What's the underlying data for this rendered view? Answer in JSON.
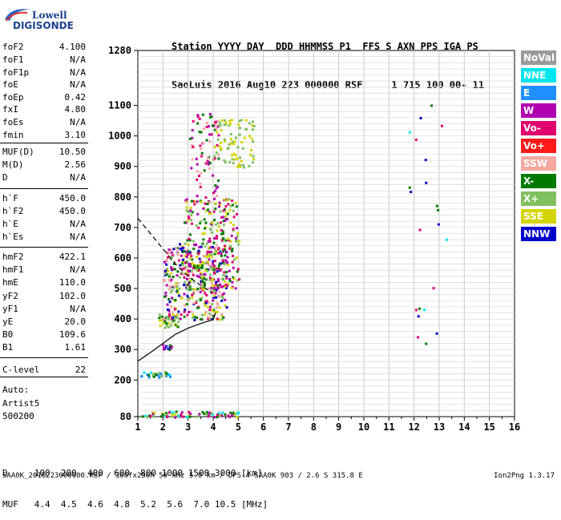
{
  "logo": {
    "line1": "Lowell",
    "line2": "DIGISONDE"
  },
  "header": {
    "line1": "Station YYYY DAY  DDD HHMMSS P1  FFS S AXN PPS IGA PS",
    "line2": "SaoLuis 2016 Aug10 223 000000 RSF     1 715 100 00- 11"
  },
  "params": [
    {
      "k": "foF2",
      "v": "4.100"
    },
    {
      "k": "foF1",
      "v": "N/A"
    },
    {
      "k": "foF1p",
      "v": "N/A"
    },
    {
      "k": "foE",
      "v": "N/A"
    },
    {
      "k": "foEp",
      "v": "0.42"
    },
    {
      "k": "fxI",
      "v": "4.80"
    },
    {
      "k": "foEs",
      "v": "N/A"
    },
    {
      "k": "fmin",
      "v": "3.10"
    },
    {
      "k": "MUF(D)",
      "v": "10.50"
    },
    {
      "k": "M(D)",
      "v": "2.56"
    },
    {
      "k": "D",
      "v": "N/A"
    },
    {
      "k": "h`F",
      "v": "450.0"
    },
    {
      "k": "h`F2",
      "v": "450.0"
    },
    {
      "k": "h`E",
      "v": "N/A"
    },
    {
      "k": "h`Es",
      "v": "N/A"
    },
    {
      "k": "hmF2",
      "v": "422.1"
    },
    {
      "k": "hmF1",
      "v": "N/A"
    },
    {
      "k": "hmE",
      "v": "110.0"
    },
    {
      "k": "yF2",
      "v": "102.0"
    },
    {
      "k": "yF1",
      "v": "N/A"
    },
    {
      "k": "yE",
      "v": "20.0"
    },
    {
      "k": "B0",
      "v": "109.6"
    },
    {
      "k": "B1",
      "v": "1.61"
    },
    {
      "k": "C-level",
      "v": "22"
    }
  ],
  "auto": {
    "line1": "Auto:",
    "line2": "Artist5",
    "line3": "500200"
  },
  "legend": [
    {
      "label": "NoVal",
      "color": "#9a9a9a"
    },
    {
      "label": "NNE",
      "color": "#00e5ee"
    },
    {
      "label": "E",
      "color": "#1e90ff"
    },
    {
      "label": "W",
      "color": "#b000b0"
    },
    {
      "label": "Vo-",
      "color": "#e0006e"
    },
    {
      "label": "Vo+",
      "color": "#ff1a1a"
    },
    {
      "label": "SSW",
      "color": "#f4a8a0"
    },
    {
      "label": "X-",
      "color": "#007a00"
    },
    {
      "label": "X+",
      "color": "#80c060"
    },
    {
      "label": "SSE",
      "color": "#d4d400"
    },
    {
      "label": "NNW",
      "color": "#0000cc"
    }
  ],
  "bottom": {
    "line1": "D     100  200  400  600  800 1000 1500 3000 [km]",
    "line2": "MUF   4.4  4.5  4.6  4.8  5.2  5.6  7.0 10.5 [MHz]"
  },
  "footer": {
    "left": "SAA0K_2016223000000.RSF / 300fx256h 50 kHz 5.0 km / DPS-4 SAA0K 903 / 2.6 S 315.8 E",
    "right": "Ion2Png 1.3.17"
  },
  "chart_data": {
    "type": "scatter",
    "title": "",
    "xlabel": "",
    "ylabel": "",
    "xlim": [
      1,
      16
    ],
    "ylim": [
      80,
      1280
    ],
    "x_ticks": [
      1,
      2,
      3,
      4,
      5,
      6,
      7,
      8,
      9,
      10,
      11,
      12,
      13,
      14,
      15,
      16
    ],
    "y_ticks": [
      80,
      200,
      300,
      400,
      500,
      600,
      700,
      800,
      900,
      1000,
      1100,
      1280
    ],
    "grid": true,
    "legend_position": "right",
    "traces": [
      {
        "kind": "dashed",
        "points": [
          [
            1.0,
            730
          ],
          [
            1.5,
            680
          ],
          [
            2.0,
            630
          ],
          [
            2.5,
            580
          ],
          [
            3.0,
            540
          ],
          [
            3.5,
            510
          ],
          [
            3.9,
            490
          ]
        ]
      },
      {
        "kind": "solid",
        "points": [
          [
            1.0,
            262
          ],
          [
            1.5,
            290
          ],
          [
            2.0,
            320
          ],
          [
            2.5,
            350
          ],
          [
            3.0,
            370
          ],
          [
            3.5,
            385
          ],
          [
            4.0,
            398
          ],
          [
            4.1,
            420
          ]
        ]
      }
    ],
    "echo_clusters": [
      {
        "x": [
          1.9,
          2.3
        ],
        "y": [
          300,
          320
        ],
        "n": 14,
        "colors": [
          "#007a00",
          "#0000cc",
          "#b000b0"
        ]
      },
      {
        "x": [
          1.1,
          2.3
        ],
        "y": [
          210,
          230
        ],
        "n": 30,
        "colors": [
          "#00e5ee",
          "#80c060",
          "#1e90ff",
          "#007a00"
        ]
      },
      {
        "x": [
          1.1,
          5.0
        ],
        "y": [
          82,
          100
        ],
        "n": 90,
        "colors": [
          "#e0006e",
          "#007a00",
          "#d4d400",
          "#b000b0",
          "#00e5ee",
          "#80c060"
        ]
      },
      {
        "x": [
          1.8,
          2.6
        ],
        "y": [
          370,
          420
        ],
        "n": 30,
        "colors": [
          "#007a00",
          "#80c060",
          "#d4d400"
        ]
      },
      {
        "x": [
          2.0,
          4.5
        ],
        "y": [
          400,
          650
        ],
        "n": 380,
        "colors": [
          "#e0006e",
          "#f4a8a0",
          "#b000b0",
          "#007a00",
          "#d4d400",
          "#0000cc",
          "#80c060"
        ]
      },
      {
        "x": [
          2.8,
          5.0
        ],
        "y": [
          500,
          800
        ],
        "n": 260,
        "colors": [
          "#d4d400",
          "#80c060",
          "#e0006e",
          "#b000b0",
          "#007a00"
        ]
      },
      {
        "x": [
          3.0,
          4.2
        ],
        "y": [
          780,
          1080
        ],
        "n": 80,
        "colors": [
          "#e0006e",
          "#f4a8a0",
          "#b000b0",
          "#007a00"
        ]
      },
      {
        "x": [
          4.0,
          5.6
        ],
        "y": [
          900,
          1060
        ],
        "n": 80,
        "colors": [
          "#d4d400",
          "#80c060"
        ]
      },
      {
        "x": [
          11.5,
          13.3
        ],
        "y": [
          280,
          1110
        ],
        "n": 22,
        "colors": [
          "#007a00",
          "#e0006e",
          "#0000cc",
          "#00e5ee"
        ]
      }
    ]
  }
}
